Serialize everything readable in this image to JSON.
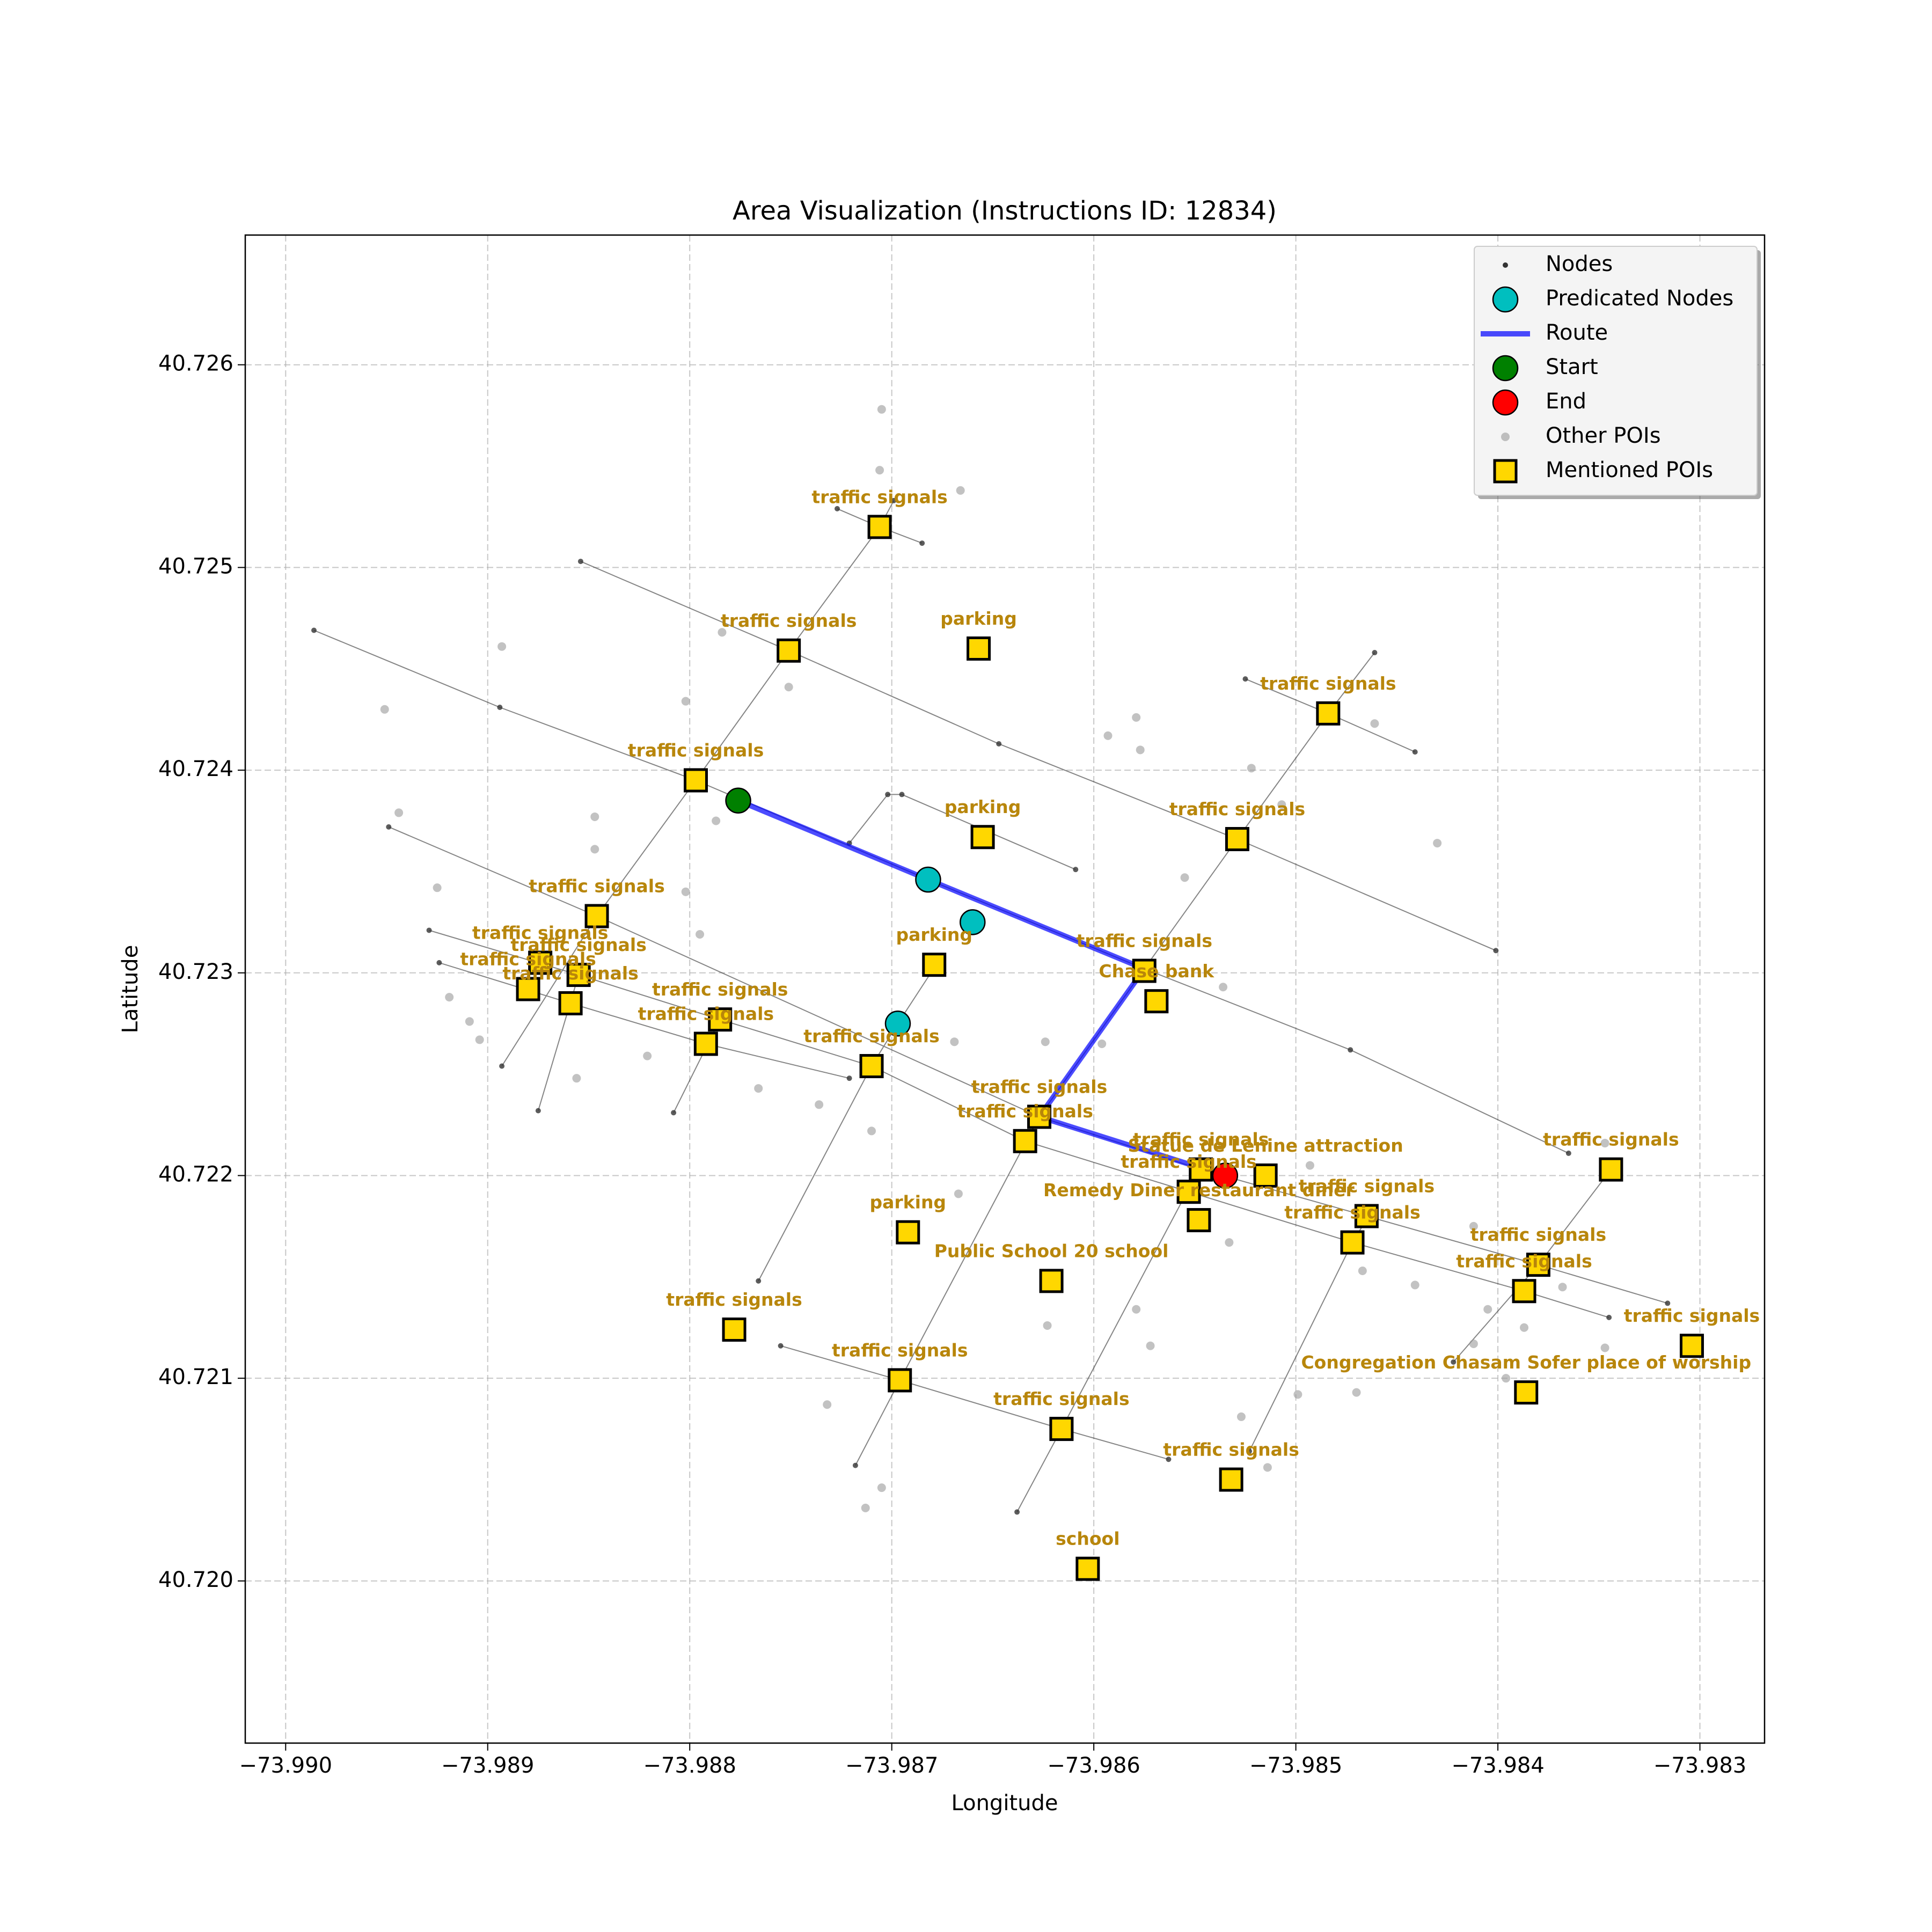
{
  "chart_data": {
    "type": "scatter",
    "title": "Area Visualization (Instructions ID: 12834)",
    "x_label": "Longitude",
    "y_label": "Latitude",
    "xlim": [
      -73.9902,
      -73.98268
    ],
    "ylim": [
      40.7192,
      40.72664
    ],
    "xticks": [
      {
        "value": -73.99,
        "label": "−73.990"
      },
      {
        "value": -73.989,
        "label": "−73.989"
      },
      {
        "value": -73.988,
        "label": "−73.988"
      },
      {
        "value": -73.987,
        "label": "−73.987"
      },
      {
        "value": -73.986,
        "label": "−73.986"
      },
      {
        "value": -73.985,
        "label": "−73.985"
      },
      {
        "value": -73.984,
        "label": "−73.984"
      },
      {
        "value": -73.983,
        "label": "−73.983"
      }
    ],
    "yticks": [
      {
        "value": 40.72,
        "label": "40.720"
      },
      {
        "value": 40.721,
        "label": "40.721"
      },
      {
        "value": 40.722,
        "label": "40.722"
      },
      {
        "value": 40.723,
        "label": "40.723"
      },
      {
        "value": 40.724,
        "label": "40.724"
      },
      {
        "value": 40.725,
        "label": "40.725"
      },
      {
        "value": 40.726,
        "label": "40.726"
      }
    ],
    "grid": true,
    "legend": "upper right",
    "series": [
      {
        "name": "Nodes",
        "marker": "dot",
        "color": "#333333",
        "x": [
          -73.98986,
          -73.98894,
          -73.98797,
          -73.98682,
          -73.98575,
          -73.98473,
          -73.98365,
          null,
          -73.98854,
          -73.98751,
          -73.98647,
          -73.98529,
          -73.98401,
          null,
          -73.98949,
          -73.98846,
          -73.98627,
          -73.98547,
          -73.98465,
          -73.9838,
          -73.98316,
          null,
          -73.98929,
          -73.98855,
          -73.98785,
          -73.9871,
          -73.98634,
          -73.98553,
          -73.98472,
          -73.98387,
          -73.98345,
          null,
          -73.98924,
          -73.98859,
          -73.98792,
          -73.98721,
          null,
          -73.98893,
          -73.98846,
          -73.98797,
          -73.98751,
          -73.98706,
          -73.98699,
          null,
          -73.98875,
          -73.98855,
          null,
          -73.98808,
          -73.98785,
          null,
          -73.98766,
          -73.9871,
          -73.98697,
          -73.9868,
          null,
          -73.98718,
          -73.98696,
          -73.98627,
          -73.98575,
          -73.98529,
          -73.98484,
          -73.98461,
          null,
          -73.98638,
          -73.98616,
          -73.98548,
          null,
          -73.98523,
          -73.98472,
          -73.98464,
          null,
          -73.98422,
          -73.9838,
          -73.98344,
          null,
          -73.98525,
          -73.98484,
          -73.98441,
          null,
          -73.98727,
          -73.98706,
          -73.98685,
          null,
          -73.98721,
          -73.98702,
          -73.98695,
          -73.98609,
          null,
          -73.98755,
          -73.98696,
          -73.98616,
          -73.98563
        ],
        "y": [
          40.72469,
          40.72431,
          40.72395,
          40.72346,
          40.72302,
          40.72262,
          40.72211,
          null,
          40.72503,
          40.72459,
          40.72413,
          40.72366,
          40.72311,
          null,
          40.72372,
          40.72328,
          40.72229,
          40.72203,
          40.7218,
          40.72156,
          40.72137,
          null,
          40.72321,
          40.72299,
          40.72277,
          40.72254,
          40.72217,
          40.72192,
          40.72167,
          40.72143,
          40.7213,
          null,
          40.72305,
          40.72285,
          40.72265,
          40.72248,
          null,
          40.72254,
          40.72328,
          40.72395,
          40.72459,
          40.7252,
          40.72533,
          null,
          40.72232,
          40.72299,
          null,
          40.72231,
          40.72277,
          null,
          40.72148,
          40.72254,
          40.72275,
          40.72301,
          null,
          40.72057,
          40.72099,
          40.72229,
          40.72302,
          40.72366,
          40.72428,
          40.72458,
          null,
          40.72034,
          40.72075,
          40.72203,
          null,
          40.72064,
          40.72167,
          40.7218,
          null,
          40.72108,
          40.72156,
          40.72203,
          null,
          40.72445,
          40.72428,
          40.72409,
          null,
          40.72529,
          40.7252,
          40.72512,
          null,
          40.72364,
          40.72388,
          40.72388,
          40.72351,
          null,
          40.72116,
          40.72099,
          40.72075,
          40.7206
        ]
      },
      {
        "name": "Predicated Nodes",
        "marker": "circle",
        "color": "#00bfbf",
        "x": [
          -73.98682,
          -73.9866,
          -73.98697
        ],
        "y": [
          40.72346,
          40.72325,
          40.72275
        ]
      },
      {
        "name": "Route",
        "marker": "line",
        "color": "#0000ff",
        "x": [
          -73.98776,
          -73.98682,
          -73.98575,
          -73.98627,
          -73.98535
        ],
        "y": [
          40.72385,
          40.72346,
          40.72302,
          40.72229,
          40.722
        ]
      },
      {
        "name": "Start",
        "marker": "circle",
        "color": "#008000",
        "x": [
          -73.98776
        ],
        "y": [
          40.72385
        ]
      },
      {
        "name": "End",
        "marker": "circle",
        "color": "#ff0000",
        "x": [
          -73.98535
        ],
        "y": [
          40.722
        ]
      },
      {
        "name": "Other POIs",
        "marker": "poi",
        "color": "#999999",
        "x": [
          -73.98705,
          -73.98706,
          -73.98666,
          -73.98784,
          -73.98893,
          -73.98751,
          -73.98951,
          -73.98802,
          -73.98593,
          -73.98579,
          -73.98577,
          -73.98461,
          -73.98522,
          -73.98507,
          -73.9843,
          -73.98944,
          -73.98847,
          -73.98787,
          -73.98847,
          -73.98925,
          -73.98802,
          -73.98555,
          -73.98795,
          -73.98536,
          -73.98919,
          -73.98909,
          -73.98904,
          -73.98669,
          -73.98596,
          -73.98624,
          -73.98821,
          -73.98856,
          -73.98766,
          -73.98736,
          -73.9871,
          -73.98493,
          -73.98667,
          -73.98533,
          -73.98467,
          -73.98441,
          -73.98412,
          -73.98405,
          -73.98368,
          -73.98387,
          -73.98412,
          -73.98396,
          -73.98347,
          -73.98347,
          -73.98579,
          -73.98572,
          -73.98499,
          -73.9847,
          -73.98732,
          -73.98705,
          -73.98713,
          -73.98527,
          -73.98514,
          -73.98623
        ],
        "y": [
          40.72578,
          40.72548,
          40.72538,
          40.72468,
          40.72461,
          40.72441,
          40.7243,
          40.72434,
          40.72417,
          40.72426,
          40.7241,
          40.72423,
          40.72401,
          40.72383,
          40.72364,
          40.72379,
          40.72377,
          40.72375,
          40.72361,
          40.72342,
          40.7234,
          40.72347,
          40.72319,
          40.72293,
          40.72288,
          40.72276,
          40.72267,
          40.72266,
          40.72265,
          40.72266,
          40.72259,
          40.72248,
          40.72243,
          40.72235,
          40.72222,
          40.72205,
          40.72191,
          40.72167,
          40.72153,
          40.72146,
          40.72175,
          40.72134,
          40.72145,
          40.72125,
          40.72117,
          40.721,
          40.72115,
          40.72216,
          40.72134,
          40.72116,
          40.72092,
          40.72093,
          40.72087,
          40.72046,
          40.72036,
          40.72081,
          40.72056,
          40.72126
        ]
      },
      {
        "name": "Mentioned POIs",
        "marker": "square",
        "color": "#ffd700",
        "x": [
          -73.98706,
          -73.98751,
          -73.98657,
          -73.98484,
          -73.98797,
          -73.98655,
          -73.98529,
          -73.98846,
          -73.98679,
          -73.98575,
          -73.98569,
          -73.98874,
          -73.98855,
          -73.9888,
          -73.98859,
          -73.98785,
          -73.98792,
          -73.9871,
          -73.98627,
          -73.98634,
          -73.98547,
          -73.98515,
          -73.98553,
          -73.98548,
          -73.98465,
          -73.98472,
          -73.98344,
          -73.98692,
          -73.98621,
          -73.9838,
          -73.98387,
          -73.98304,
          -73.98778,
          -73.98696,
          -73.98616,
          -73.98532,
          -73.98386,
          -73.98603
        ],
        "y": [
          40.7252,
          40.72459,
          40.7246,
          40.72428,
          40.72395,
          40.72367,
          40.72366,
          40.72328,
          40.72304,
          40.72301,
          40.72286,
          40.72305,
          40.72299,
          40.72292,
          40.72285,
          40.72277,
          40.72265,
          40.72254,
          40.72229,
          40.72217,
          40.72203,
          40.722,
          40.72192,
          40.72178,
          40.7218,
          40.72167,
          40.72203,
          40.72172,
          40.72148,
          40.72156,
          40.72143,
          40.72116,
          40.72124,
          40.72099,
          40.72075,
          40.7205,
          40.72093,
          40.72006
        ],
        "labels": [
          "traffic signals",
          "traffic signals",
          "parking",
          "traffic signals",
          "traffic signals",
          "parking",
          "traffic signals",
          "traffic signals",
          "parking",
          "traffic signals",
          "Chase bank",
          "traffic signals",
          "traffic signals",
          "traffic signals",
          "traffic signals",
          "traffic signals",
          "traffic signals",
          "traffic signals",
          "traffic signals",
          "traffic signals",
          "traffic signals",
          "Statue de Lenine attraction",
          "traffic signals",
          "Remedy Diner restaurant diner",
          "traffic signals",
          "traffic signals",
          "traffic signals",
          "parking",
          "Public School 20 school",
          "traffic signals",
          "traffic signals",
          "traffic signals",
          "traffic signals",
          "traffic signals",
          "traffic signals",
          "traffic signals",
          "Congregation Chasam Sofer place of worship",
          "school"
        ]
      }
    ]
  }
}
